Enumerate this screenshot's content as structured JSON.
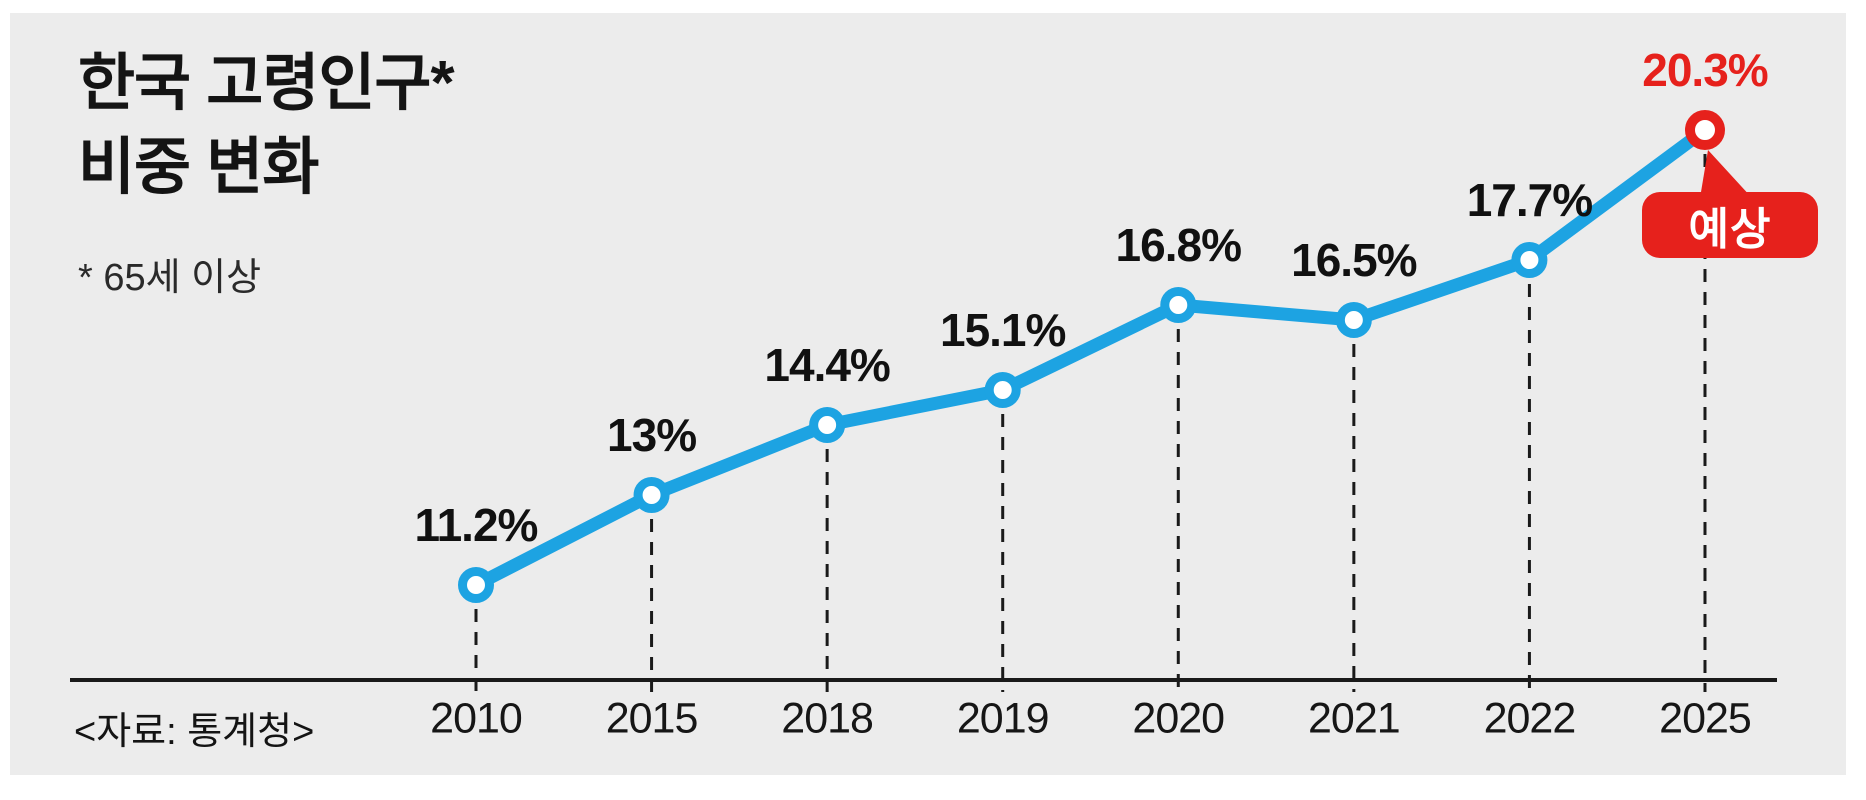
{
  "card": {
    "title_line1": "한국 고령인구*",
    "title_line2": "비중 변화",
    "footnote": "* 65세 이상",
    "source": "<자료: 통계청>"
  },
  "annotation": {
    "label": "예상"
  },
  "colors": {
    "background": "#ececec",
    "line_blue": "#1da3e2",
    "accent_red": "#e6211c",
    "ink": "#1a1a1a",
    "marker_fill": "#ffffff"
  },
  "chart_data": {
    "type": "line",
    "title": "한국 고령인구* 비중 변화",
    "subtitle": "* 65세 이상",
    "source": "<자료: 통계청>",
    "categories": [
      "2010",
      "2015",
      "2018",
      "2019",
      "2020",
      "2021",
      "2022",
      "2025"
    ],
    "series": [
      {
        "name": "고령인구 비중(%)",
        "values": [
          11.2,
          13,
          14.4,
          15.1,
          16.8,
          16.5,
          17.7,
          20.3
        ]
      }
    ],
    "point_labels": [
      "11.2%",
      "13%",
      "14.4%",
      "15.1%",
      "16.8%",
      "16.5%",
      "17.7%",
      "20.3%"
    ],
    "forecast_index": 7,
    "forecast_annotation": "예상",
    "xlabel": "",
    "ylabel": "",
    "ylim": [
      9.3,
      21.5
    ],
    "grid": false,
    "legend": false
  }
}
